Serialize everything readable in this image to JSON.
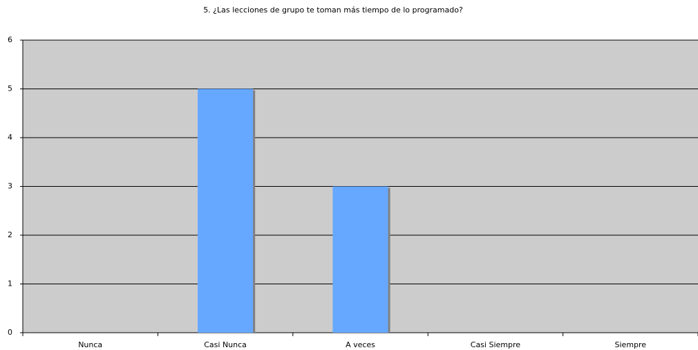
{
  "chart_data": {
    "type": "bar",
    "title": "5. ¿Las lecciones de grupo te toman más tiempo de lo programado?",
    "categories": [
      "Nunca",
      "Casi Nunca",
      "A veces",
      "Casi Siempre",
      "Siempre"
    ],
    "values": [
      0,
      5,
      3,
      0,
      0
    ],
    "color": "#66a8ff",
    "ylim": [
      0,
      6
    ],
    "yticks": [
      0,
      1,
      2,
      3,
      4,
      5,
      6
    ],
    "grid": true
  }
}
